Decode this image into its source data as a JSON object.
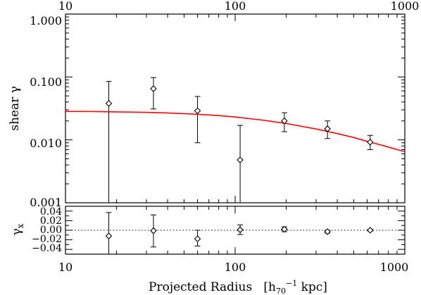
{
  "chart_data": [
    {
      "type": "scatter",
      "panel": "top",
      "xscale": "log",
      "yscale": "log",
      "xlim": [
        10,
        1000
      ],
      "ylim": [
        0.001,
        1.0
      ],
      "ylabel": "shear γ",
      "x_ticklabels": [
        "10",
        "100",
        "1000"
      ],
      "y_ticklabels": [
        "0.001",
        "0.010",
        "0.100",
        "1.000"
      ],
      "points": [
        {
          "x": 18,
          "y": 0.038,
          "ylo": 0.0001,
          "yhi": 0.085
        },
        {
          "x": 33,
          "y": 0.065,
          "ylo": 0.031,
          "yhi": 0.098
        },
        {
          "x": 60,
          "y": 0.029,
          "ylo": 0.009,
          "yhi": 0.049
        },
        {
          "x": 107,
          "y": 0.0048,
          "ylo": 0.0001,
          "yhi": 0.017
        },
        {
          "x": 195,
          "y": 0.02,
          "ylo": 0.0135,
          "yhi": 0.027
        },
        {
          "x": 350,
          "y": 0.015,
          "ylo": 0.0105,
          "yhi": 0.02
        },
        {
          "x": 625,
          "y": 0.0092,
          "ylo": 0.007,
          "yhi": 0.0118
        }
      ],
      "model_curve": {
        "color": "#ff0000",
        "x": [
          10,
          15,
          20,
          30,
          40,
          60,
          80,
          100,
          150,
          200,
          300,
          400,
          500,
          600,
          700,
          800,
          900,
          1000
        ],
        "y": [
          0.0283,
          0.0282,
          0.0279,
          0.0274,
          0.0268,
          0.0255,
          0.0243,
          0.0231,
          0.0204,
          0.0182,
          0.0149,
          0.0126,
          0.0109,
          0.0095,
          0.0085,
          0.0077,
          0.007,
          0.0065
        ]
      }
    },
    {
      "type": "scatter",
      "panel": "bottom",
      "xscale": "log",
      "xlim": [
        10,
        1000
      ],
      "ylim": [
        -0.05,
        0.05
      ],
      "ylabel": "γx",
      "xlabel": "Projected Radius   [h70−1 kpc]",
      "x_ticklabels": [
        "10",
        "100",
        "1000"
      ],
      "y_ticklabels": [
        "0.04",
        "0.02",
        "0.00",
        "−0.02",
        "−0.04"
      ],
      "y_ticks": [
        0.04,
        0.02,
        0.0,
        -0.02,
        -0.04
      ],
      "zero_line": "dotted",
      "points": [
        {
          "x": 18,
          "y": -0.012,
          "ylo": -0.05,
          "yhi": 0.037
        },
        {
          "x": 33,
          "y": -0.001,
          "ylo": -0.035,
          "yhi": 0.032
        },
        {
          "x": 60,
          "y": -0.018,
          "ylo": -0.033,
          "yhi": 0.0
        },
        {
          "x": 107,
          "y": 0.001,
          "ylo": -0.009,
          "yhi": 0.011
        },
        {
          "x": 195,
          "y": 0.002,
          "ylo": -0.003,
          "yhi": 0.007
        },
        {
          "x": 350,
          "y": -0.003,
          "ylo": -0.006,
          "yhi": 0.0
        },
        {
          "x": 625,
          "y": 0.0,
          "ylo": -0.002,
          "yhi": 0.002
        }
      ]
    }
  ]
}
